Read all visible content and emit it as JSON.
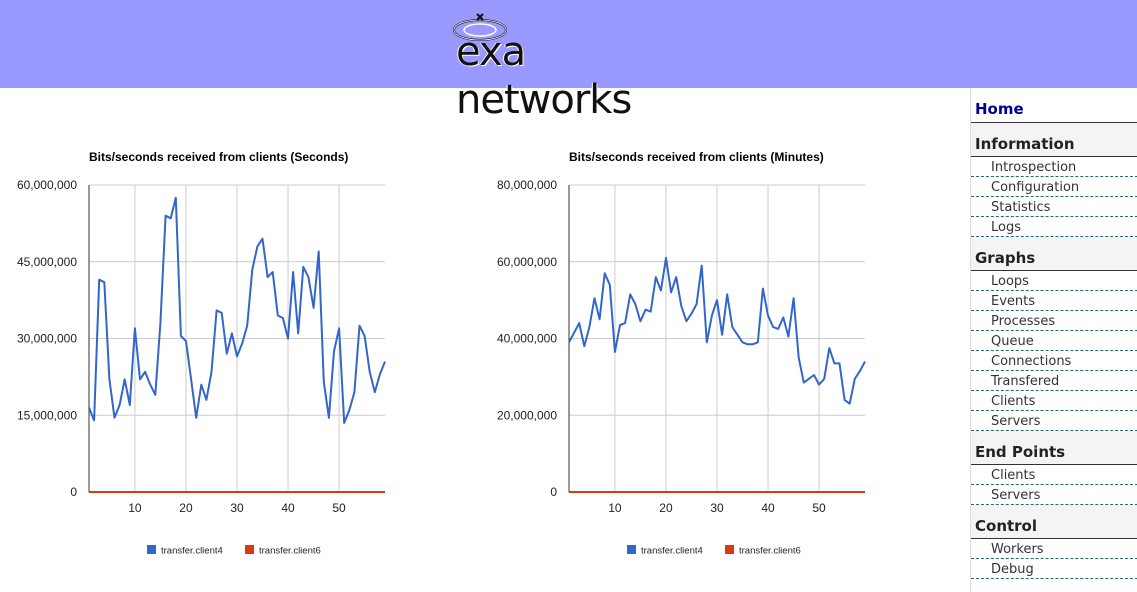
{
  "header": {
    "brand": "exa networks",
    "background": "#9999ff"
  },
  "sidebar": {
    "home": "Home",
    "sections": [
      {
        "title": "Information",
        "items": [
          "Introspection",
          "Configuration",
          "Statistics",
          "Logs"
        ]
      },
      {
        "title": "Graphs",
        "items": [
          "Loops",
          "Events",
          "Processes",
          "Queue",
          "Connections",
          "Transfered",
          "Clients",
          "Servers"
        ]
      },
      {
        "title": "End Points",
        "items": [
          "Clients",
          "Servers"
        ]
      },
      {
        "title": "Control",
        "items": [
          "Workers",
          "Debug"
        ]
      }
    ]
  },
  "colors": {
    "client4": "#3366cc",
    "client6": "#dc3912"
  },
  "chart_data": [
    {
      "type": "line",
      "title": "Bits/seconds received from clients (Seconds)",
      "xlabel": "",
      "ylabel": "",
      "xlim": [
        1,
        59
      ],
      "ylim": [
        0,
        60000000
      ],
      "x_ticks": [
        10,
        20,
        30,
        40,
        50
      ],
      "y_ticks": [
        "0",
        "15,000,000",
        "30,000,000",
        "45,000,000",
        "60,000,000"
      ],
      "y_tick_values": [
        0,
        15000000,
        30000000,
        45000000,
        60000000
      ],
      "grid": true,
      "legend": "bottom",
      "x": [
        1,
        2,
        3,
        4,
        5,
        6,
        7,
        8,
        9,
        10,
        11,
        12,
        13,
        14,
        15,
        16,
        17,
        18,
        19,
        20,
        21,
        22,
        23,
        24,
        25,
        26,
        27,
        28,
        29,
        30,
        31,
        32,
        33,
        34,
        35,
        36,
        37,
        38,
        39,
        40,
        41,
        42,
        43,
        44,
        45,
        46,
        47,
        48,
        49,
        50,
        51,
        52,
        53,
        54,
        55,
        56,
        57,
        58,
        59
      ],
      "series": [
        {
          "name": "transfer.client4",
          "color": "#3366cc",
          "values": [
            16500000,
            14000000,
            41500000,
            41000000,
            22000000,
            14500000,
            17000000,
            22000000,
            17000000,
            32000000,
            22000000,
            23500000,
            21000000,
            19000000,
            33000000,
            54000000,
            53500000,
            57500000,
            30500000,
            29500000,
            22000000,
            14500000,
            21000000,
            18000000,
            23500000,
            35500000,
            35000000,
            27000000,
            31000000,
            26500000,
            29000000,
            32500000,
            43500000,
            48000000,
            49500000,
            42000000,
            43000000,
            34500000,
            34000000,
            30000000,
            43000000,
            31000000,
            44000000,
            42000000,
            36000000,
            47000000,
            21500000,
            14500000,
            27500000,
            32000000,
            13500000,
            16000000,
            19500000,
            32500000,
            30500000,
            23500000,
            19500000,
            23000000,
            25500000
          ]
        },
        {
          "name": "transfer.client6",
          "color": "#dc3912",
          "values": [
            0,
            0,
            0,
            0,
            0,
            0,
            0,
            0,
            0,
            0,
            0,
            0,
            0,
            0,
            0,
            0,
            0,
            0,
            0,
            0,
            0,
            0,
            0,
            0,
            0,
            0,
            0,
            0,
            0,
            0,
            0,
            0,
            0,
            0,
            0,
            0,
            0,
            0,
            0,
            0,
            0,
            0,
            0,
            0,
            0,
            0,
            0,
            0,
            0,
            0,
            0,
            0,
            0,
            0,
            0,
            0,
            0,
            0,
            0
          ]
        }
      ]
    },
    {
      "type": "line",
      "title": "Bits/seconds received from clients (Minutes)",
      "xlabel": "",
      "ylabel": "",
      "xlim": [
        1,
        59
      ],
      "ylim": [
        0,
        80000000
      ],
      "x_ticks": [
        10,
        20,
        30,
        40,
        50
      ],
      "y_ticks": [
        "0",
        "20,000,000",
        "40,000,000",
        "60,000,000",
        "80,000,000"
      ],
      "y_tick_values": [
        0,
        20000000,
        40000000,
        60000000,
        80000000
      ],
      "grid": true,
      "legend": "bottom",
      "x": [
        1,
        2,
        3,
        4,
        5,
        6,
        7,
        8,
        9,
        10,
        11,
        12,
        13,
        14,
        15,
        16,
        17,
        18,
        19,
        20,
        21,
        22,
        23,
        24,
        25,
        26,
        27,
        28,
        29,
        30,
        31,
        32,
        33,
        34,
        35,
        36,
        37,
        38,
        39,
        40,
        41,
        42,
        43,
        44,
        45,
        46,
        47,
        48,
        49,
        50,
        51,
        52,
        53,
        54,
        55,
        56,
        57,
        58,
        59
      ],
      "series": [
        {
          "name": "transfer.client4",
          "color": "#3366cc",
          "values": [
            39000000,
            41500000,
            44000000,
            38000000,
            43000000,
            50500000,
            45000000,
            57000000,
            54000000,
            36500000,
            43500000,
            44000000,
            51500000,
            49000000,
            44500000,
            47500000,
            47000000,
            56000000,
            52500000,
            61000000,
            52000000,
            56000000,
            48500000,
            44500000,
            46500000,
            49000000,
            59000000,
            39000000,
            46000000,
            50000000,
            41000000,
            51500000,
            43000000,
            41000000,
            39000000,
            38500000,
            38500000,
            39000000,
            53000000,
            46000000,
            43000000,
            42500000,
            45500000,
            40500000,
            50500000,
            35000000,
            28500000,
            29500000,
            30500000,
            28000000,
            29500000,
            37500000,
            33500000,
            33500000,
            24000000,
            23000000,
            29500000,
            31500000,
            34000000
          ]
        },
        {
          "name": "transfer.client6",
          "color": "#dc3912",
          "values": [
            0,
            0,
            0,
            0,
            0,
            0,
            0,
            0,
            0,
            0,
            0,
            0,
            0,
            0,
            0,
            0,
            0,
            0,
            0,
            0,
            0,
            0,
            0,
            0,
            0,
            0,
            0,
            0,
            0,
            0,
            0,
            0,
            0,
            0,
            0,
            0,
            0,
            0,
            0,
            0,
            0,
            0,
            0,
            0,
            0,
            0,
            0,
            0,
            0,
            0,
            0,
            0,
            0,
            0,
            0,
            0,
            0,
            0,
            0
          ]
        }
      ]
    }
  ]
}
